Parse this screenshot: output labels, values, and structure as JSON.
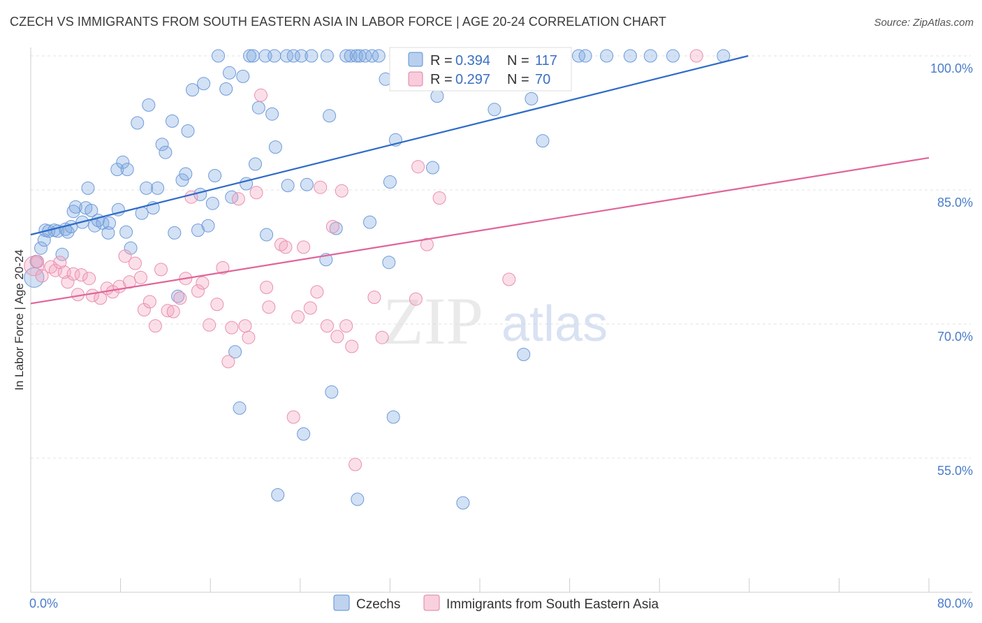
{
  "title": "CZECH VS IMMIGRANTS FROM SOUTH EASTERN ASIA IN LABOR FORCE | AGE 20-24 CORRELATION CHART",
  "source": "Source: ZipAtlas.com",
  "watermark": {
    "zip": "ZIP",
    "atlas": "atlas"
  },
  "chart_data": {
    "type": "scatter",
    "xlabel": "",
    "ylabel": "In Labor Force | Age 20-24",
    "xlim": [
      0,
      80
    ],
    "ylim": [
      40,
      100
    ],
    "x_tick_labels": [
      "0.0%",
      "80.0%"
    ],
    "y_ticks": [
      55,
      70,
      85,
      100
    ],
    "y_tick_labels": [
      "55.0%",
      "70.0%",
      "85.0%",
      "100.0%"
    ],
    "grid": true,
    "legend_position": "top-center",
    "series": [
      {
        "name": "Czechs",
        "color": "#7fa8e0",
        "line_color": "#2e6bc8",
        "R": "0.394",
        "N": "117",
        "trend": [
          [
            0,
            80.0
          ],
          [
            63.9,
            100.0
          ]
        ],
        "points": [
          [
            0.3,
            75.2
          ],
          [
            0.5,
            77.0
          ],
          [
            0.9,
            78.5
          ],
          [
            1.2,
            79.4
          ],
          [
            1.3,
            80.5
          ],
          [
            1.6,
            80.4
          ],
          [
            2.1,
            80.5
          ],
          [
            2.4,
            80.4
          ],
          [
            2.8,
            77.8
          ],
          [
            3.1,
            80.6
          ],
          [
            3.3,
            80.3
          ],
          [
            3.6,
            80.9
          ],
          [
            3.8,
            82.6
          ],
          [
            4.0,
            83.1
          ],
          [
            4.6,
            81.4
          ],
          [
            4.9,
            83.0
          ],
          [
            5.1,
            85.2
          ],
          [
            5.4,
            82.7
          ],
          [
            5.7,
            81.0
          ],
          [
            6.0,
            81.6
          ],
          [
            6.4,
            81.3
          ],
          [
            6.9,
            80.2
          ],
          [
            7.0,
            81.3
          ],
          [
            7.7,
            87.3
          ],
          [
            7.8,
            82.8
          ],
          [
            8.2,
            88.1
          ],
          [
            8.5,
            80.3
          ],
          [
            8.6,
            87.3
          ],
          [
            8.9,
            78.5
          ],
          [
            9.5,
            92.5
          ],
          [
            9.9,
            82.4
          ],
          [
            10.3,
            85.2
          ],
          [
            10.5,
            94.5
          ],
          [
            10.9,
            83.0
          ],
          [
            11.3,
            85.2
          ],
          [
            11.7,
            90.1
          ],
          [
            12.0,
            89.2
          ],
          [
            12.6,
            92.7
          ],
          [
            12.8,
            80.2
          ],
          [
            13.1,
            73.1
          ],
          [
            13.5,
            86.1
          ],
          [
            13.8,
            86.8
          ],
          [
            14.0,
            91.6
          ],
          [
            14.4,
            96.2
          ],
          [
            14.9,
            80.5
          ],
          [
            15.1,
            84.5
          ],
          [
            15.4,
            96.9
          ],
          [
            15.8,
            81.0
          ],
          [
            16.2,
            83.5
          ],
          [
            16.4,
            86.6
          ],
          [
            16.7,
            100.0
          ],
          [
            17.4,
            96.3
          ],
          [
            17.7,
            98.1
          ],
          [
            17.9,
            84.2
          ],
          [
            18.2,
            66.9
          ],
          [
            18.6,
            60.6
          ],
          [
            18.9,
            97.7
          ],
          [
            19.2,
            85.7
          ],
          [
            19.5,
            100.0
          ],
          [
            19.8,
            100.0
          ],
          [
            20.0,
            87.9
          ],
          [
            20.3,
            94.2
          ],
          [
            20.9,
            100.0
          ],
          [
            21.0,
            80.0
          ],
          [
            21.5,
            93.5
          ],
          [
            21.7,
            100.0
          ],
          [
            21.8,
            89.8
          ],
          [
            22.0,
            50.9
          ],
          [
            22.8,
            100.0
          ],
          [
            22.9,
            85.5
          ],
          [
            23.4,
            100.0
          ],
          [
            24.1,
            100.0
          ],
          [
            24.3,
            57.7
          ],
          [
            24.6,
            85.6
          ],
          [
            25.0,
            100.0
          ],
          [
            26.3,
            77.2
          ],
          [
            26.4,
            100.0
          ],
          [
            26.6,
            93.3
          ],
          [
            26.8,
            62.4
          ],
          [
            27.2,
            80.7
          ],
          [
            28.1,
            100.0
          ],
          [
            28.5,
            100.0
          ],
          [
            29.0,
            100.0
          ],
          [
            29.1,
            50.4
          ],
          [
            29.3,
            100.0
          ],
          [
            29.8,
            100.0
          ],
          [
            30.2,
            81.4
          ],
          [
            30.4,
            100.0
          ],
          [
            31.0,
            100.0
          ],
          [
            31.6,
            97.4
          ],
          [
            31.9,
            76.9
          ],
          [
            32.0,
            85.9
          ],
          [
            32.3,
            59.6
          ],
          [
            32.5,
            90.6
          ],
          [
            33.7,
            100.0
          ],
          [
            35.3,
            100.0
          ],
          [
            35.8,
            87.5
          ],
          [
            36.2,
            95.5
          ],
          [
            36.8,
            97.6
          ],
          [
            37.1,
            100.0
          ],
          [
            37.7,
            100.0
          ],
          [
            38.5,
            50.0
          ],
          [
            40.4,
            100.0
          ],
          [
            41.0,
            100.0
          ],
          [
            41.3,
            94.0
          ],
          [
            42.3,
            100.0
          ],
          [
            43.5,
            100.0
          ],
          [
            43.9,
            66.6
          ],
          [
            44.6,
            95.2
          ],
          [
            45.6,
            90.5
          ],
          [
            48.8,
            100.0
          ],
          [
            49.4,
            100.0
          ],
          [
            51.3,
            100.0
          ],
          [
            53.4,
            100.0
          ],
          [
            55.2,
            100.0
          ],
          [
            57.2,
            100.0
          ],
          [
            61.7,
            100.0
          ]
        ]
      },
      {
        "name": "Immigrants from South Eastern Asia",
        "color": "#f4a3bd",
        "line_color": "#e0649a",
        "R": "0.297",
        "N": "70",
        "trend": [
          [
            0,
            72.3
          ],
          [
            80,
            88.6
          ]
        ],
        "points": [
          [
            0.3,
            76.5
          ],
          [
            0.6,
            77.0
          ],
          [
            1.0,
            75.4
          ],
          [
            1.8,
            76.4
          ],
          [
            2.2,
            76.0
          ],
          [
            2.6,
            76.9
          ],
          [
            3.0,
            75.8
          ],
          [
            3.3,
            74.7
          ],
          [
            3.8,
            75.6
          ],
          [
            4.2,
            73.3
          ],
          [
            4.5,
            75.5
          ],
          [
            5.2,
            75.1
          ],
          [
            5.5,
            73.2
          ],
          [
            6.2,
            72.9
          ],
          [
            6.8,
            74.0
          ],
          [
            7.3,
            73.6
          ],
          [
            7.9,
            74.2
          ],
          [
            8.4,
            77.6
          ],
          [
            8.8,
            74.7
          ],
          [
            9.3,
            76.8
          ],
          [
            9.8,
            75.2
          ],
          [
            10.1,
            71.6
          ],
          [
            10.6,
            72.5
          ],
          [
            11.1,
            69.8
          ],
          [
            11.6,
            76.1
          ],
          [
            12.2,
            71.5
          ],
          [
            12.7,
            71.4
          ],
          [
            13.3,
            72.9
          ],
          [
            13.8,
            75.1
          ],
          [
            14.3,
            84.2
          ],
          [
            14.9,
            73.7
          ],
          [
            15.3,
            74.6
          ],
          [
            15.9,
            69.9
          ],
          [
            16.6,
            72.2
          ],
          [
            17.1,
            76.3
          ],
          [
            17.6,
            65.8
          ],
          [
            17.9,
            69.6
          ],
          [
            18.5,
            84.0
          ],
          [
            19.1,
            69.8
          ],
          [
            19.4,
            68.5
          ],
          [
            20.1,
            84.7
          ],
          [
            20.5,
            95.6
          ],
          [
            21.0,
            74.1
          ],
          [
            21.2,
            71.9
          ],
          [
            22.3,
            78.9
          ],
          [
            22.7,
            78.6
          ],
          [
            23.4,
            59.6
          ],
          [
            23.8,
            70.8
          ],
          [
            24.3,
            78.6
          ],
          [
            24.9,
            71.8
          ],
          [
            25.5,
            73.6
          ],
          [
            25.8,
            85.3
          ],
          [
            26.4,
            69.8
          ],
          [
            26.9,
            80.9
          ],
          [
            27.3,
            68.6
          ],
          [
            27.7,
            84.9
          ],
          [
            28.1,
            69.8
          ],
          [
            28.6,
            67.5
          ],
          [
            28.9,
            54.3
          ],
          [
            30.6,
            73.0
          ],
          [
            31.3,
            68.5
          ],
          [
            33.0,
            100.0
          ],
          [
            33.6,
            97.9
          ],
          [
            34.0,
            100.0
          ],
          [
            34.3,
            72.8
          ],
          [
            34.5,
            87.6
          ],
          [
            35.3,
            78.9
          ],
          [
            36.4,
            84.1
          ],
          [
            42.6,
            75.0
          ],
          [
            59.3,
            100.0
          ]
        ]
      }
    ]
  }
}
